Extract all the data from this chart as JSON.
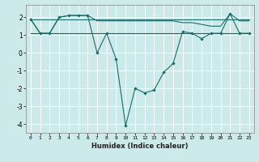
{
  "xlabel": "Humidex (Indice chaleur)",
  "background_color": "#cceaea",
  "grid_color": "#ffffff",
  "line_color": "#1a6b6b",
  "line_flat_low": [
    1.1,
    1.1,
    1.1,
    1.1,
    1.1,
    1.1,
    1.1,
    1.1,
    1.1,
    1.1,
    1.1,
    1.1,
    1.1,
    1.1,
    1.1,
    1.1,
    1.1,
    1.1,
    1.1,
    1.1,
    1.1,
    1.1,
    1.1,
    1.1
  ],
  "line_flat_high": [
    1.9,
    1.9,
    1.9,
    1.9,
    1.9,
    1.9,
    1.9,
    1.9,
    1.9,
    1.9,
    1.9,
    1.9,
    1.9,
    1.9,
    1.9,
    1.9,
    1.9,
    1.9,
    1.9,
    1.9,
    1.9,
    1.9,
    1.9,
    1.9
  ],
  "line_top": [
    1.9,
    1.1,
    1.1,
    2.0,
    2.1,
    2.1,
    2.1,
    1.8,
    1.8,
    1.8,
    1.8,
    1.8,
    1.8,
    1.8,
    1.8,
    1.8,
    1.7,
    1.7,
    1.6,
    1.5,
    1.5,
    2.2,
    1.8,
    1.8
  ],
  "line_zigzag": [
    1.9,
    1.1,
    1.1,
    2.0,
    2.1,
    2.1,
    2.1,
    0.0,
    1.1,
    -0.35,
    -4.1,
    -2.0,
    -2.25,
    -2.1,
    -1.1,
    -0.6,
    1.2,
    1.1,
    0.8,
    1.1,
    1.1,
    2.2,
    1.1,
    1.1
  ],
  "x": [
    0,
    1,
    2,
    3,
    4,
    5,
    6,
    7,
    8,
    9,
    10,
    11,
    12,
    13,
    14,
    15,
    16,
    17,
    18,
    19,
    20,
    21,
    22,
    23
  ],
  "ylim": [
    -4.5,
    2.7
  ],
  "yticks": [
    -4,
    -3,
    -2,
    -1,
    0,
    1,
    2
  ],
  "xlim": [
    -0.5,
    23.5
  ],
  "figsize": [
    3.2,
    2.0
  ],
  "dpi": 100
}
